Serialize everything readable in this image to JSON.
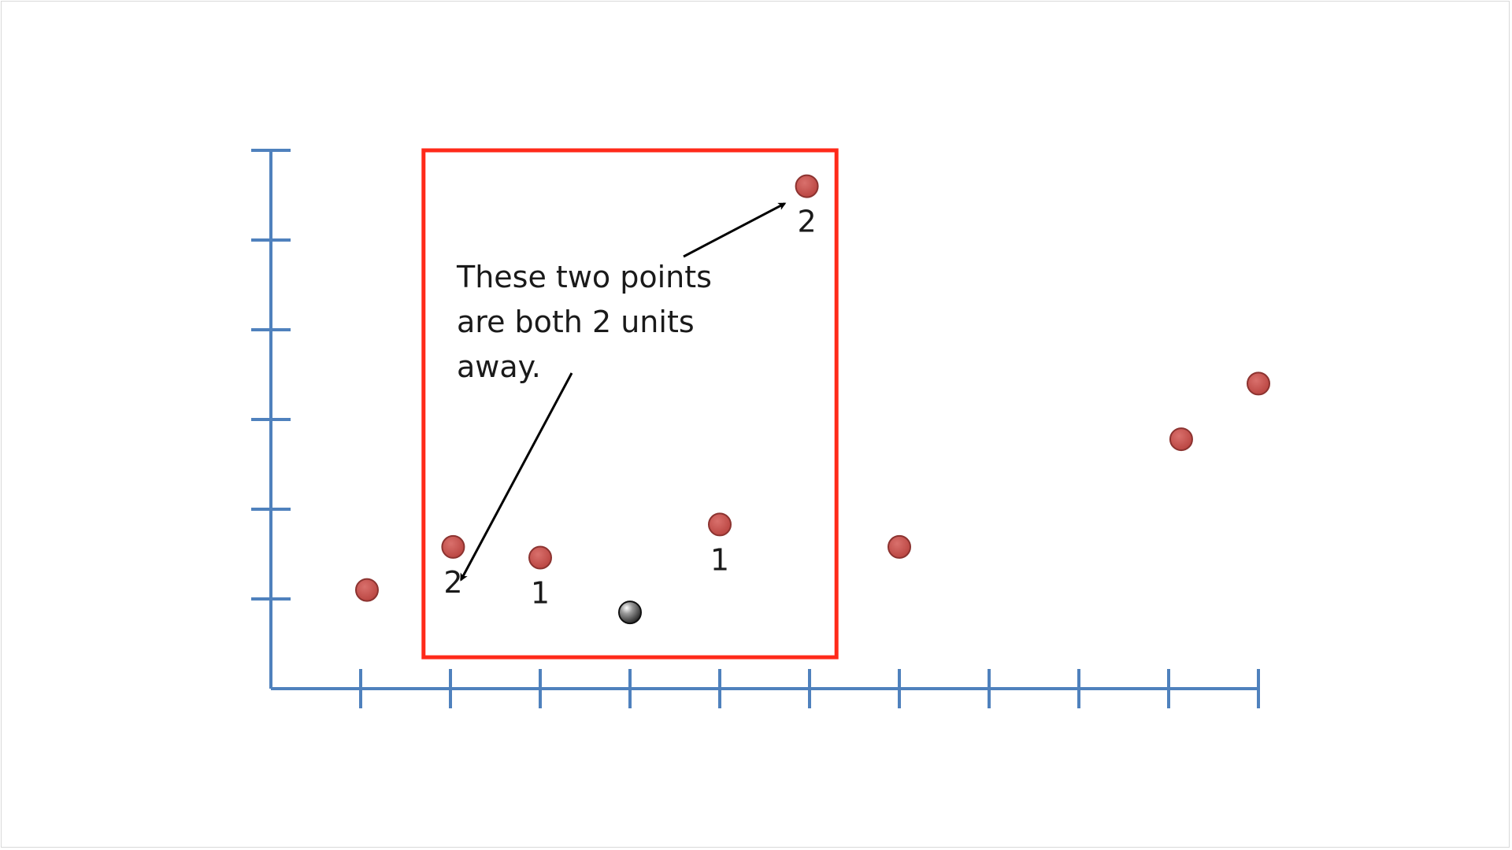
{
  "chart_data": {
    "type": "scatter",
    "title": "",
    "xlabel": "",
    "ylabel": "",
    "xlim": [
      0,
      11
    ],
    "ylim": [
      0,
      6
    ],
    "grid": false,
    "x_ticks": [
      1,
      2,
      3,
      4,
      5,
      6,
      7,
      8,
      9,
      10,
      11
    ],
    "y_ticks": [
      1,
      2,
      3,
      4,
      5,
      6
    ],
    "query_point": {
      "x": 4,
      "y": 0.85
    },
    "points": [
      {
        "x": 1.07,
        "y": 1.1,
        "label": ""
      },
      {
        "x": 2.03,
        "y": 1.58,
        "label": "2"
      },
      {
        "x": 3.0,
        "y": 1.46,
        "label": "1"
      },
      {
        "x": 5.0,
        "y": 1.83,
        "label": "1"
      },
      {
        "x": 5.97,
        "y": 5.6,
        "label": "2"
      },
      {
        "x": 7.0,
        "y": 1.58,
        "label": ""
      },
      {
        "x": 10.14,
        "y": 2.78,
        "label": ""
      },
      {
        "x": 11.0,
        "y": 3.4,
        "label": ""
      }
    ],
    "highlight_box": {
      "x_range": [
        1.7,
        6.3
      ],
      "y_range": [
        0.35,
        6.0
      ]
    },
    "annotation": {
      "lines": [
        "These two points",
        "are both 2 units",
        "away."
      ]
    },
    "colors": {
      "axis": "#4f81bd",
      "point": "#c0504d",
      "point_stroke": "#8c3330",
      "query_point": "#3a3a3a",
      "box": "#ff2a1a",
      "arrow": "#000000",
      "text": "#1a1a1a"
    }
  }
}
